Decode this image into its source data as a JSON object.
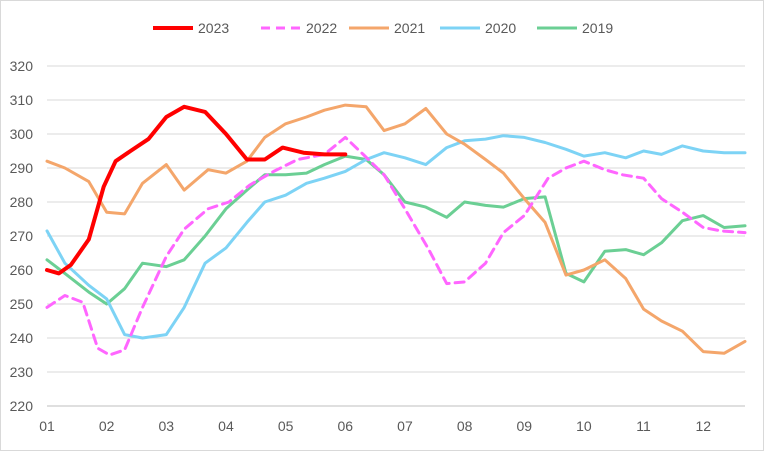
{
  "chart_data": {
    "type": "line",
    "title": "",
    "xlabel": "",
    "ylabel": "",
    "x_ticks": [
      "01",
      "02",
      "03",
      "04",
      "05",
      "06",
      "07",
      "08",
      "09",
      "10",
      "11",
      "12"
    ],
    "y_ticks": [
      220,
      230,
      240,
      250,
      260,
      270,
      280,
      290,
      300,
      310,
      320
    ],
    "ylim": [
      220,
      320
    ],
    "xlim": [
      1,
      12.7
    ],
    "grid": "horizontal",
    "legend": "top",
    "series": [
      {
        "name": "2023",
        "color": "#ff0000",
        "width": 4,
        "dash": "",
        "x": [
          1,
          1.2,
          1.4,
          1.7,
          1.95,
          2.15,
          2.4,
          2.7,
          3,
          3.3,
          3.65,
          4,
          4.35,
          4.65,
          4.95,
          5.3,
          5.65,
          6
        ],
        "y": [
          260,
          259,
          261.5,
          269,
          284.5,
          292,
          295,
          298.5,
          305,
          308,
          306.5,
          300,
          292.5,
          292.5,
          296,
          294.5,
          294,
          294
        ]
      },
      {
        "name": "2022",
        "color": "#ff66ff",
        "width": 3,
        "dash": "9,6",
        "x": [
          1,
          1.3,
          1.6,
          1.85,
          2.05,
          2.3,
          2.6,
          3,
          3.3,
          3.7,
          4.05,
          4.4,
          4.8,
          5.2,
          5.65,
          6,
          6.3,
          6.65,
          7,
          7.4,
          7.7,
          8,
          8.35,
          8.65,
          9,
          9.4,
          9.7,
          10,
          10.35,
          10.65,
          11,
          11.3,
          11.65,
          12,
          12.3,
          12.7
        ],
        "y": [
          249,
          252.5,
          250.5,
          237,
          235,
          236.5,
          249,
          264,
          272,
          278,
          280,
          285,
          289,
          292.5,
          294,
          299,
          294,
          288,
          278,
          266,
          256,
          256.5,
          262,
          271,
          276,
          287,
          290,
          292,
          289.5,
          288,
          287,
          281,
          277,
          272.5,
          271.5,
          271
        ]
      },
      {
        "name": "2021",
        "color": "#f4a66b",
        "width": 3,
        "dash": "",
        "x": [
          1,
          1.3,
          1.7,
          2,
          2.3,
          2.6,
          3,
          3.3,
          3.7,
          4,
          4.35,
          4.65,
          5,
          5.35,
          5.65,
          6,
          6.35,
          6.65,
          7,
          7.35,
          7.7,
          8,
          8.35,
          8.65,
          9,
          9.35,
          9.7,
          10,
          10.35,
          10.7,
          11,
          11.3,
          11.65,
          12,
          12.35,
          12.7
        ],
        "y": [
          292,
          290,
          286,
          277,
          276.5,
          285.5,
          291,
          283.5,
          289.5,
          288.5,
          292,
          299,
          303,
          305,
          307,
          308.5,
          308,
          301,
          303,
          307.5,
          300,
          297,
          292.5,
          288.5,
          281,
          274,
          258.5,
          260,
          263,
          257.5,
          248.5,
          245,
          242,
          236,
          235.5,
          239
        ]
      },
      {
        "name": "2020",
        "color": "#7dd3f5",
        "width": 3,
        "dash": "",
        "x": [
          1,
          1.3,
          1.7,
          2,
          2.3,
          2.6,
          3,
          3.3,
          3.65,
          4,
          4.35,
          4.65,
          5,
          5.35,
          5.65,
          6,
          6.35,
          6.65,
          7,
          7.35,
          7.7,
          8,
          8.35,
          8.65,
          9,
          9.35,
          9.7,
          10,
          10.35,
          10.7,
          11,
          11.3,
          11.65,
          12,
          12.35,
          12.7
        ],
        "y": [
          271.5,
          262,
          255.5,
          251.5,
          241,
          240,
          241,
          249,
          262,
          266.5,
          274,
          280,
          282,
          285.5,
          287,
          289,
          292.5,
          294.5,
          293,
          291,
          296,
          298,
          298.5,
          299.5,
          299,
          297.5,
          295.5,
          293.5,
          294.5,
          293,
          295,
          294,
          296.5,
          295,
          294.5,
          294.5
        ]
      },
      {
        "name": "2019",
        "color": "#6bcf94",
        "width": 3,
        "dash": "",
        "x": [
          1,
          1.3,
          1.7,
          2,
          2.3,
          2.6,
          3,
          3.3,
          3.65,
          4,
          4.35,
          4.65,
          5,
          5.35,
          5.65,
          6,
          6.35,
          6.65,
          7,
          7.35,
          7.7,
          8,
          8.35,
          8.65,
          9,
          9.35,
          9.7,
          10,
          10.35,
          10.7,
          11,
          11.3,
          11.65,
          12,
          12.35,
          12.7
        ],
        "y": [
          263,
          259,
          253.5,
          250,
          254.5,
          262,
          261,
          263,
          270,
          278,
          283.5,
          288,
          288,
          288.5,
          291,
          293.5,
          292.5,
          288,
          280,
          278.5,
          275.5,
          280,
          279,
          278.5,
          281,
          281.5,
          259,
          256.5,
          265.5,
          266,
          264.5,
          268,
          274.5,
          276,
          272.5,
          273
        ]
      }
    ]
  }
}
